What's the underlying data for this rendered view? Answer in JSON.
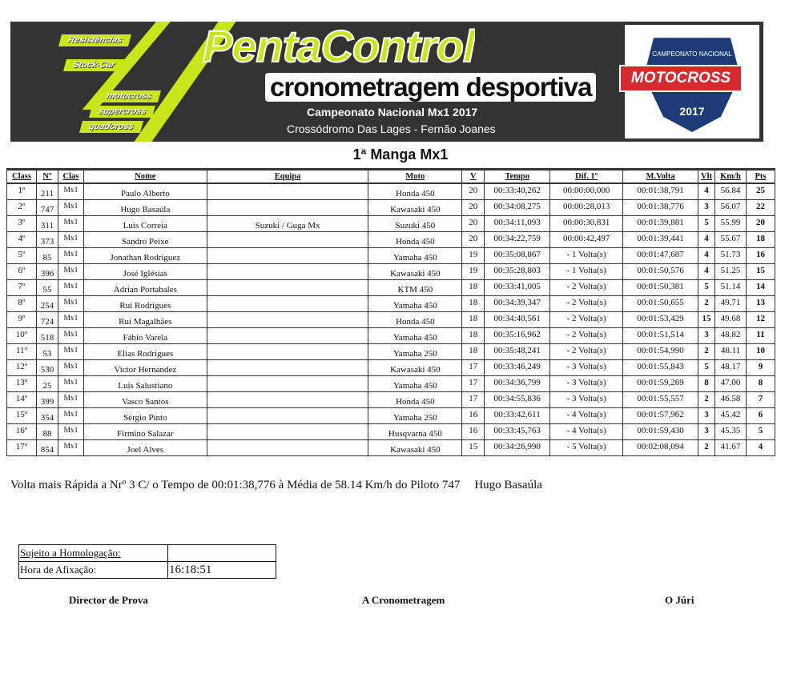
{
  "header": {
    "tags": [
      "Resistências",
      "Stock-Car",
      "motocross",
      "supercross",
      "quadcross"
    ],
    "brand": "PentaControl",
    "brand_sub": "cronometragem desportiva",
    "championship": "Campeonato Nacional Mx1 2017",
    "venue": "Crossódromo Das Lages - Fernão Joanes",
    "logo": {
      "top": "CAMPEONATO NACIONAL",
      "main": "MOTOCROSS",
      "year": "2017"
    },
    "colors": {
      "accent": "#c8e619",
      "banner": "#333333",
      "logo_red": "#d52b2e",
      "logo_blue": "#1d3b77"
    }
  },
  "title": "1ª Manga Mx1",
  "table": {
    "columns": [
      "Class",
      "Nº",
      "Clas",
      "Nome",
      "Equipa",
      "Moto",
      "V",
      "Tempo",
      "Dif. 1º",
      "M.Volta",
      "Vlt",
      "Km/h",
      "Pts"
    ],
    "rows": [
      [
        "1º",
        "211",
        "Mx1",
        "Paulo Alberto",
        "",
        "Honda 450",
        "20",
        "00:33:40,262",
        "00:00:00,000",
        "00:01:38,791",
        "4",
        "56.84",
        "25"
      ],
      [
        "2º",
        "747",
        "Mx1",
        "Hugo Basaúla",
        "",
        "Kawasaki 450",
        "20",
        "00:34:08,275",
        "00:00:28,013",
        "00:01:38,776",
        "3",
        "56.07",
        "22"
      ],
      [
        "3º",
        "311",
        "Mx1",
        "Luis Correia",
        "Suzuki / Guga Mx",
        "Suzuki 450",
        "20",
        "00:34:11,093",
        "00:00:30,831",
        "00:01:39,881",
        "5",
        "55.99",
        "20"
      ],
      [
        "4º",
        "373",
        "Mx1",
        "Sandro Peixe",
        "",
        "Honda 450",
        "20",
        "00:34:22,759",
        "00:00:42,497",
        "00:01:39,441",
        "4",
        "55.67",
        "18"
      ],
      [
        "5º",
        "85",
        "Mx1",
        "Jonathan Rodriguez",
        "",
        "Yamaha 450",
        "19",
        "00:35:08,867",
        "- 1 Volta(s)",
        "00:01:47,687",
        "4",
        "51.73",
        "16"
      ],
      [
        "6º",
        "396",
        "Mx1",
        "José Iglésias",
        "",
        "Kawasaki 450",
        "19",
        "00:35:28,803",
        "- 1 Volta(s)",
        "00:01:50,576",
        "4",
        "51.25",
        "15"
      ],
      [
        "7º",
        "55",
        "Mx1",
        "Adrian Portabales",
        "",
        "KTM 450",
        "18",
        "00:33:41,005",
        "- 2 Volta(s)",
        "00:01:50,381",
        "5",
        "51.14",
        "14"
      ],
      [
        "8º",
        "254",
        "Mx1",
        "Rui Rodrigues",
        "",
        "Yamaha 450",
        "18",
        "00:34:39,347",
        "- 2 Volta(s)",
        "00:01:50,655",
        "2",
        "49.71",
        "13"
      ],
      [
        "9º",
        "724",
        "Mx1",
        "Rui Magalhães",
        "",
        "Honda 450",
        "18",
        "00:34:40,561",
        "- 2 Volta(s)",
        "00:01:53,429",
        "15",
        "49.68",
        "12"
      ],
      [
        "10º",
        "518",
        "Mx1",
        "Fábio Varela",
        "",
        "Yamaha 450",
        "18",
        "00:35:16,962",
        "- 2 Volta(s)",
        "00:01:51,514",
        "3",
        "48.82",
        "11"
      ],
      [
        "11º",
        "53",
        "Mx1",
        "Elias Rodrigues",
        "",
        "Yamaha 250",
        "18",
        "00:35:48,241",
        "- 2 Volta(s)",
        "00:01:54,990",
        "2",
        "48.11",
        "10"
      ],
      [
        "12º",
        "530",
        "Mx1",
        "Victor Hernandez",
        "",
        "Kawasaki 450",
        "17",
        "00:33:46,249",
        "- 3 Volta(s)",
        "00:01:55,843",
        "5",
        "48.17",
        "9"
      ],
      [
        "13º",
        "25",
        "Mx1",
        "Luis Salustiano",
        "",
        "Yamaha 450",
        "17",
        "00:34:36,799",
        "- 3 Volta(s)",
        "00:01:59,269",
        "8",
        "47.00",
        "8"
      ],
      [
        "14º",
        "399",
        "Mx1",
        "Vasco Santos",
        "",
        "Honda 450",
        "17",
        "00:34:55,836",
        "- 3 Volta(s)",
        "00:01:55,557",
        "2",
        "46.58",
        "7"
      ],
      [
        "15º",
        "354",
        "Mx1",
        "Sérgio Pinto",
        "",
        "Yamaha 250",
        "16",
        "00:33:42,611",
        "- 4 Volta(s)",
        "00:01:57,962",
        "3",
        "45.42",
        "6"
      ],
      [
        "16º",
        "88",
        "Mx1",
        "Firmino Salazar",
        "",
        "Husqvarna 450",
        "16",
        "00:33:45,763",
        "- 4 Volta(s)",
        "00:01:59,430",
        "3",
        "45.35",
        "5"
      ],
      [
        "17º",
        "854",
        "Mx1",
        "Joel Alves",
        "",
        "Kawasaki 450",
        "15",
        "00:34:26,990",
        "- 5 Volta(s)",
        "00:02:08,094",
        "2",
        "41.67",
        "4"
      ]
    ]
  },
  "fastest_lap": {
    "text": "Volta mais Rápida a Nrº 3 C/ o Tempo de 00:01:38,776 à Média de 58.14 Km/h do Piloto 747",
    "pilot": "Hugo Basaúla"
  },
  "homologation": {
    "label1": "Sujeito a Homologação:",
    "value1": "",
    "label2": "Hora de Afixação:",
    "value2": "16:18:51"
  },
  "signatures": [
    "Director de Prova",
    "A Cronometragem",
    "O Júri"
  ]
}
